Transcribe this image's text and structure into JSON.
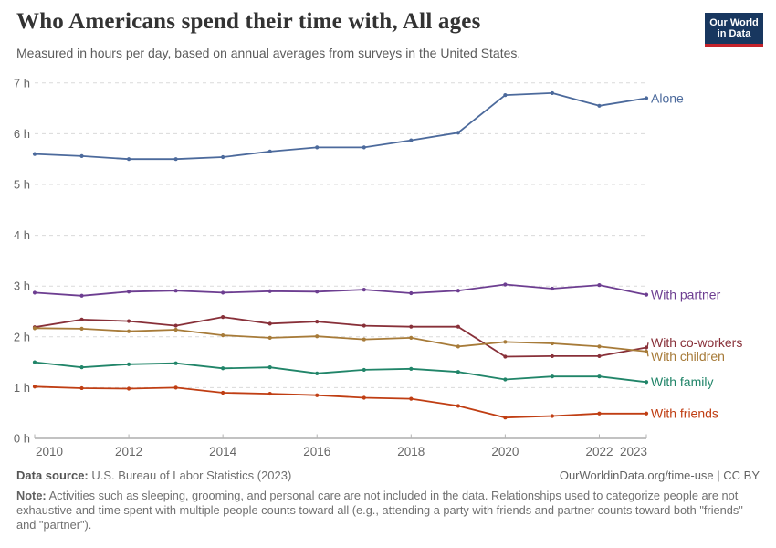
{
  "header": {
    "title": "Who Americans spend their time with, All ages",
    "subtitle": "Measured in hours per day, based on annual averages from surveys in the United States.",
    "logo_line1": "Our World",
    "logo_line2": "in Data",
    "logo_bg": "#18375f",
    "logo_accent": "#c5232b"
  },
  "chart_data": {
    "type": "line",
    "title": "Who Americans spend their time with, All ages",
    "subtitle": "Measured in hours per day, based on annual averages from surveys in the United States",
    "xlabel": "",
    "ylabel": "hours per day",
    "x": [
      2010,
      2011,
      2012,
      2013,
      2014,
      2015,
      2016,
      2017,
      2018,
      2019,
      2020,
      2021,
      2022,
      2023
    ],
    "x_ticks": [
      2010,
      2012,
      2014,
      2016,
      2018,
      2020,
      2022,
      2023
    ],
    "y_ticks": [
      0,
      1,
      2,
      3,
      4,
      5,
      6,
      7
    ],
    "y_tick_suffix": " h",
    "ylim": [
      0,
      7.3
    ],
    "grid": "horizontal-dashed",
    "legend_position": "right-edge-labels",
    "grid_color": "#dadada",
    "axis_color": "#9e9e9e",
    "series": [
      {
        "name": "Alone",
        "color": "#4C6A9C",
        "values": [
          5.6,
          5.56,
          5.5,
          5.5,
          5.54,
          5.65,
          5.73,
          5.73,
          5.87,
          6.02,
          6.76,
          6.8,
          6.55,
          6.7
        ]
      },
      {
        "name": "With partner",
        "color": "#6D3E91",
        "values": [
          2.87,
          2.81,
          2.89,
          2.91,
          2.87,
          2.9,
          2.89,
          2.93,
          2.86,
          2.91,
          3.03,
          2.95,
          3.02,
          2.83
        ]
      },
      {
        "name": "With co-workers",
        "color": "#883039",
        "values": [
          2.19,
          2.34,
          2.31,
          2.22,
          2.39,
          2.26,
          2.3,
          2.22,
          2.2,
          2.2,
          1.61,
          1.62,
          1.62,
          1.79
        ]
      },
      {
        "name": "With children",
        "color": "#A77B39",
        "values": [
          2.17,
          2.16,
          2.11,
          2.14,
          2.03,
          1.98,
          2.01,
          1.95,
          1.98,
          1.81,
          1.9,
          1.87,
          1.81,
          1.71
        ]
      },
      {
        "name": "With family",
        "color": "#218569",
        "values": [
          1.5,
          1.4,
          1.46,
          1.48,
          1.38,
          1.4,
          1.28,
          1.35,
          1.37,
          1.31,
          1.16,
          1.22,
          1.22,
          1.11
        ]
      },
      {
        "name": "With friends",
        "color": "#C03E13",
        "values": [
          1.02,
          0.99,
          0.98,
          1.0,
          0.9,
          0.88,
          0.85,
          0.8,
          0.78,
          0.64,
          0.41,
          0.44,
          0.49,
          0.49
        ]
      }
    ]
  },
  "footer": {
    "source_label": "Data source:",
    "source_value": "U.S. Bureau of Labor Statistics (2023)",
    "link": "OurWorldinData.org/time-use | CC BY",
    "note_label": "Note:",
    "note_text": "Activities such as sleeping, grooming, and personal care are not included in the data. Relationships used to categorize people are not exhaustive and time spent with multiple people counts toward all (e.g., attending a party with friends and partner counts toward both \"friends\" and \"partner\")."
  }
}
